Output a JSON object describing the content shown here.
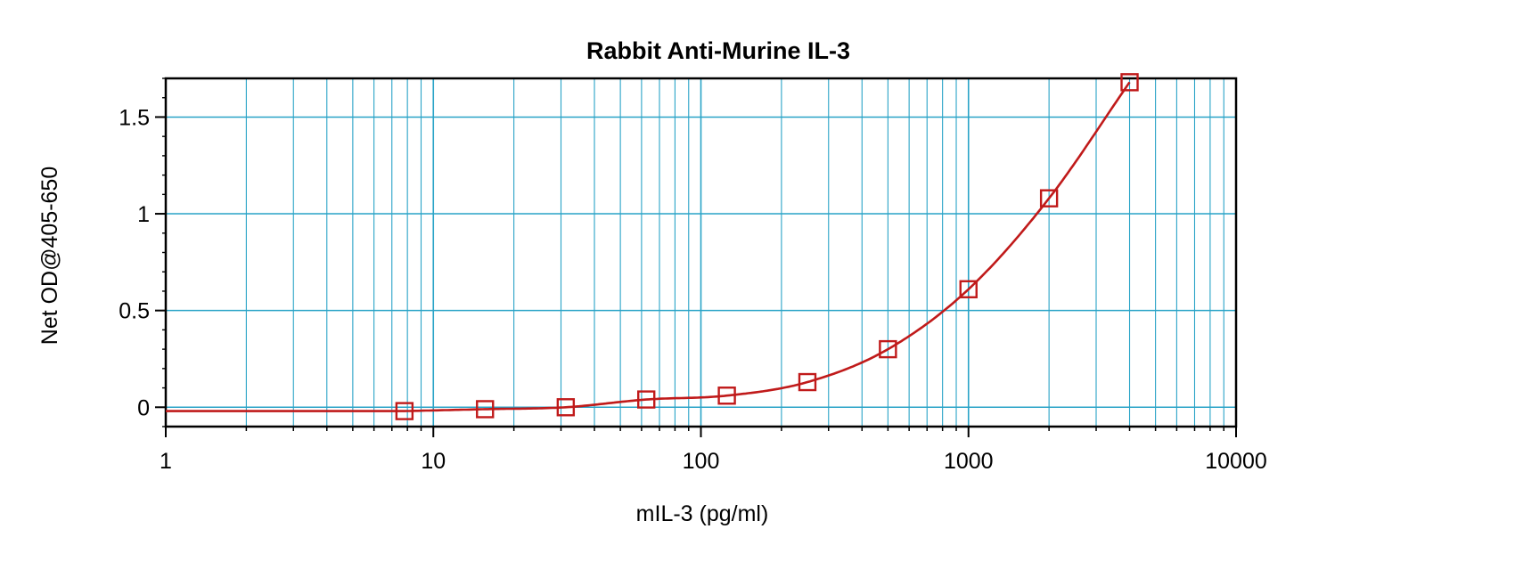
{
  "chart_data": {
    "type": "scatter",
    "title": "Rabbit Anti-Murine IL-3",
    "xlabel": "mIL-3 (pg/ml)",
    "ylabel": "Net OD@405-650",
    "x_scale": "log",
    "xlim": [
      1,
      10000
    ],
    "ylim": [
      -0.1,
      1.7
    ],
    "x_ticks": [
      1,
      10,
      100,
      1000,
      10000
    ],
    "x_tick_labels": [
      "1",
      "10",
      "100",
      "1000",
      "10000"
    ],
    "y_ticks": [
      0,
      0.5,
      1,
      1.5
    ],
    "y_tick_labels": [
      "0",
      "0.5",
      "1",
      "1.5"
    ],
    "grid": true,
    "series": [
      {
        "x": [
          7.8,
          15.6,
          31.25,
          62.5,
          125,
          250,
          500,
          1000,
          2000,
          4000
        ],
        "y": [
          -0.02,
          -0.01,
          0.0,
          0.04,
          0.06,
          0.13,
          0.3,
          0.61,
          1.08,
          1.68
        ],
        "marker": "square",
        "fit_line": true
      }
    ],
    "colors": {
      "grid": "#29a3c7",
      "series": "#c01a1a",
      "axis": "#000000"
    }
  }
}
